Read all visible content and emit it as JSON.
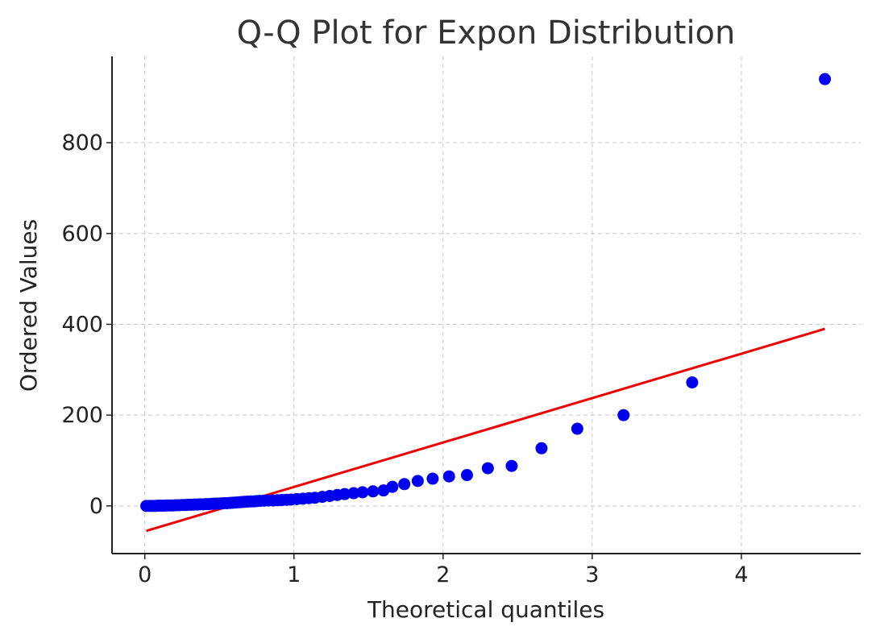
{
  "chart_data": {
    "type": "scatter",
    "title": "Q-Q Plot for Expon Distribution",
    "xlabel": "Theoretical quantiles",
    "ylabel": "Ordered Values",
    "xlim": [
      -0.22,
      4.8
    ],
    "ylim": [
      -105,
      990
    ],
    "xticks": [
      0,
      1,
      2,
      3,
      4
    ],
    "yticks": [
      0,
      200,
      400,
      600,
      800
    ],
    "grid": true,
    "colors": {
      "points": "#0000ee",
      "fit_line": "#ee0000"
    },
    "series": [
      {
        "kind": "points",
        "x": [
          0.01,
          0.03,
          0.05,
          0.07,
          0.09,
          0.11,
          0.13,
          0.15,
          0.17,
          0.19,
          0.21,
          0.23,
          0.25,
          0.27,
          0.29,
          0.31,
          0.33,
          0.35,
          0.37,
          0.39,
          0.41,
          0.43,
          0.45,
          0.47,
          0.49,
          0.51,
          0.53,
          0.55,
          0.57,
          0.59,
          0.61,
          0.63,
          0.65,
          0.67,
          0.69,
          0.71,
          0.73,
          0.75,
          0.77,
          0.8,
          0.83,
          0.86,
          0.89,
          0.92,
          0.95,
          0.98,
          1.02,
          1.06,
          1.1,
          1.14,
          1.19,
          1.24,
          1.29,
          1.34,
          1.4,
          1.46,
          1.53,
          1.6,
          1.66,
          1.74,
          1.83,
          1.93,
          2.04,
          2.16,
          2.3,
          2.46,
          2.66,
          2.9,
          3.21,
          3.67,
          4.56
        ],
        "y": [
          0,
          0,
          0,
          0,
          0.5,
          0.5,
          0.5,
          1,
          1,
          1,
          1.5,
          1.5,
          2,
          2,
          2.5,
          2.5,
          3,
          3,
          3.5,
          3.5,
          4,
          4,
          4.5,
          5,
          5,
          5.5,
          6,
          6,
          6.5,
          7,
          7.5,
          8,
          8.5,
          9,
          9.5,
          10,
          10,
          10.5,
          11,
          11.5,
          12,
          12,
          12.5,
          13,
          13.5,
          14,
          15,
          16,
          17,
          18,
          20,
          22,
          24,
          26,
          28,
          30,
          32,
          34,
          42,
          48,
          55,
          60,
          65,
          68,
          83,
          88,
          127,
          170,
          200,
          272,
          940
        ]
      },
      {
        "kind": "line",
        "x": [
          0.01,
          4.56
        ],
        "y": [
          -55,
          390
        ]
      }
    ]
  }
}
